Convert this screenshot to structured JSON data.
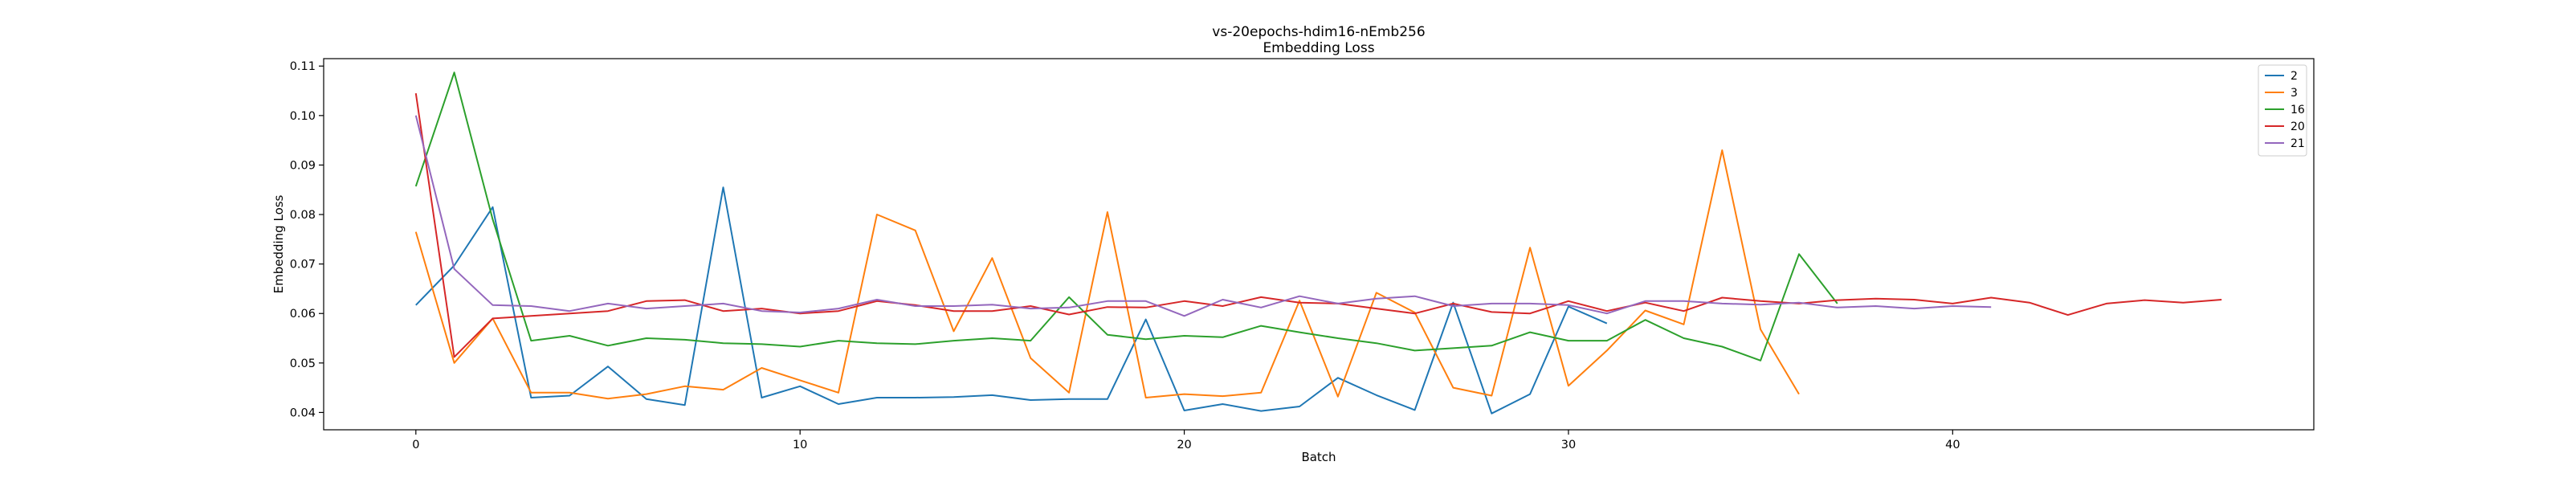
{
  "chart_data": {
    "type": "line",
    "title": "vs-20epochs-hdim16-nEmb256",
    "subtitle": "Embedding Loss",
    "xlabel": "Batch",
    "ylabel": "Embedding Loss",
    "xlim": [
      -2.4,
      49.4
    ],
    "ylim": [
      0.0365,
      0.1115
    ],
    "xticks": [
      0,
      10,
      20,
      30,
      40
    ],
    "yticks": [
      0.04,
      0.05,
      0.06,
      0.07,
      0.08,
      0.09,
      0.1,
      0.11
    ],
    "ytick_labels": [
      "0.04",
      "0.05",
      "0.06",
      "0.07",
      "0.08",
      "0.09",
      "0.10",
      "0.11"
    ],
    "grid": false,
    "legend_position": "top-right",
    "series": [
      {
        "name": "2",
        "color": "#1f77b4",
        "values": [
          0.0617,
          0.0697,
          0.0815,
          0.043,
          0.0434,
          0.0493,
          0.0427,
          0.0415,
          0.0855,
          0.043,
          0.0453,
          0.0417,
          0.043,
          0.043,
          0.0431,
          0.0435,
          0.0425,
          0.0427,
          0.0427,
          0.0588,
          0.0404,
          0.0417,
          0.0403,
          0.0412,
          0.047,
          0.0435,
          0.0405,
          0.0622,
          0.0398,
          0.0437,
          0.0614,
          0.058
        ]
      },
      {
        "name": "3",
        "color": "#ff7f0e",
        "values": [
          0.0765,
          0.05,
          0.059,
          0.044,
          0.044,
          0.0428,
          0.0437,
          0.0453,
          0.0446,
          0.049,
          0.0465,
          0.044,
          0.08,
          0.0768,
          0.0564,
          0.0712,
          0.051,
          0.044,
          0.0805,
          0.043,
          0.0437,
          0.0433,
          0.044,
          0.0626,
          0.0432,
          0.0642,
          0.0602,
          0.045,
          0.0434,
          0.0733,
          0.0454,
          0.0525,
          0.0606,
          0.0578,
          0.093,
          0.0568,
          0.0437
        ]
      },
      {
        "name": "16",
        "color": "#2ca02c",
        "values": [
          0.0857,
          0.1087,
          0.079,
          0.0545,
          0.0555,
          0.0535,
          0.055,
          0.0547,
          0.054,
          0.0538,
          0.0533,
          0.0545,
          0.054,
          0.0538,
          0.0545,
          0.055,
          0.0545,
          0.0633,
          0.0557,
          0.0548,
          0.0555,
          0.0552,
          0.0575,
          0.0562,
          0.055,
          0.054,
          0.0525,
          0.053,
          0.0535,
          0.0562,
          0.0545,
          0.0545,
          0.0587,
          0.055,
          0.0533,
          0.0505,
          0.072,
          0.062
        ]
      },
      {
        "name": "20",
        "color": "#d62728",
        "values": [
          0.1045,
          0.0512,
          0.059,
          0.0595,
          0.06,
          0.0605,
          0.0625,
          0.0627,
          0.0605,
          0.061,
          0.06,
          0.0605,
          0.0625,
          0.0617,
          0.0605,
          0.0605,
          0.0615,
          0.0598,
          0.0613,
          0.0612,
          0.0625,
          0.0615,
          0.0633,
          0.0622,
          0.062,
          0.061,
          0.06,
          0.062,
          0.0603,
          0.06,
          0.0625,
          0.0605,
          0.0622,
          0.0605,
          0.0632,
          0.0625,
          0.062,
          0.0627,
          0.063,
          0.0628,
          0.062,
          0.0632,
          0.0622,
          0.0597,
          0.062,
          0.0627,
          0.0622,
          0.0628
        ]
      },
      {
        "name": "21",
        "color": "#9467bd",
        "values": [
          0.1,
          0.069,
          0.0617,
          0.0615,
          0.0605,
          0.062,
          0.061,
          0.0615,
          0.062,
          0.0605,
          0.0602,
          0.061,
          0.0628,
          0.0615,
          0.0615,
          0.0618,
          0.061,
          0.0612,
          0.0625,
          0.0625,
          0.0595,
          0.0628,
          0.0612,
          0.0635,
          0.062,
          0.063,
          0.0635,
          0.0615,
          0.062,
          0.062,
          0.0617,
          0.06,
          0.0625,
          0.0625,
          0.062,
          0.0618,
          0.0622,
          0.0612,
          0.0615,
          0.061,
          0.0615,
          0.0613
        ]
      }
    ]
  }
}
